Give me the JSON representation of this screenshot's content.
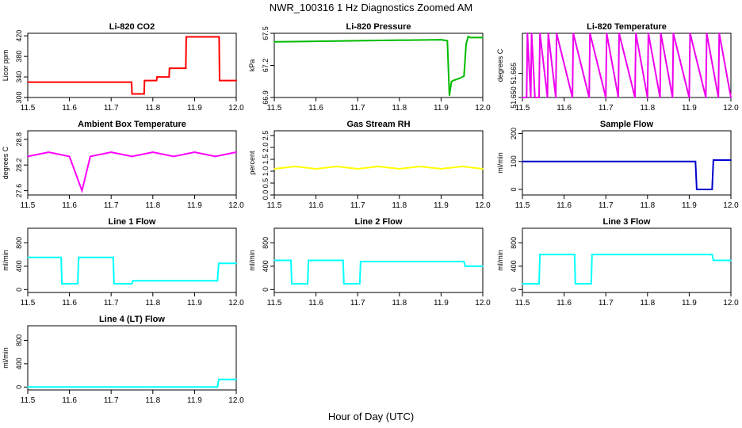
{
  "figure": {
    "title": "NWR_100316  1 Hz Diagnostics Zoomed AM",
    "xlabel": "Hour of Day (UTC)"
  },
  "chart_data": [
    {
      "type": "line",
      "title": "Li-820 CO2",
      "ylabel": "Licor ppm",
      "color": "#ff0000",
      "xlim": [
        11.5,
        12.0
      ],
      "ylim": [
        300,
        425
      ],
      "xticks": [
        "11.5",
        "11.6",
        "11.7",
        "11.8",
        "11.9",
        "12.0"
      ],
      "yticks": [
        "300",
        "340",
        "380",
        "420"
      ],
      "x": [
        11.5,
        11.749,
        11.75,
        11.779,
        11.78,
        11.809,
        11.81,
        11.839,
        11.84,
        11.879,
        11.88,
        11.959,
        11.96,
        12.0
      ],
      "y": [
        330,
        330,
        307,
        307,
        333,
        333,
        340,
        340,
        357,
        357,
        418,
        418,
        333,
        333
      ]
    },
    {
      "type": "line",
      "title": "Li-820 Pressure",
      "ylabel": "kPa",
      "color": "#00bb00",
      "xlim": [
        11.5,
        12.0
      ],
      "ylim": [
        66.9,
        67.5
      ],
      "xticks": [
        "11.5",
        "11.6",
        "11.7",
        "11.8",
        "11.9",
        "12.0"
      ],
      "yticks": [
        "66.9",
        "67.2",
        "67.5"
      ],
      "x": [
        11.5,
        11.7,
        11.9,
        11.915,
        11.92,
        11.925,
        11.93,
        11.945,
        11.955,
        11.96,
        11.965,
        11.97,
        12.0
      ],
      "y": [
        67.42,
        67.43,
        67.44,
        67.43,
        66.92,
        67.05,
        67.06,
        67.08,
        67.1,
        67.4,
        67.47,
        67.46,
        67.46
      ]
    },
    {
      "type": "line",
      "title": "Li-820 Temperature",
      "ylabel": "degrees C",
      "color": "#ee00ee",
      "xlim": [
        11.5,
        12.0
      ],
      "ylim": [
        51.65,
        51.69
      ],
      "xticks": [
        "11.5",
        "11.6",
        "11.7",
        "11.8",
        "11.9",
        "12.0"
      ],
      "yticks": [
        "51.650",
        "51.665"
      ],
      "x": [
        11.5,
        11.51,
        11.512,
        11.52,
        11.522,
        11.53,
        11.54,
        11.542,
        11.56,
        11.562,
        11.58,
        11.582,
        11.62,
        11.622,
        11.66,
        11.662,
        11.7,
        11.702,
        11.73,
        11.732,
        11.77,
        11.772,
        11.8,
        11.802,
        11.83,
        11.832,
        11.86,
        11.862,
        11.9,
        11.902,
        11.94,
        11.942,
        11.97,
        11.972,
        12.0
      ],
      "y": [
        51.65,
        51.65,
        51.69,
        51.65,
        51.69,
        51.65,
        51.65,
        51.69,
        51.65,
        51.69,
        51.65,
        51.69,
        51.65,
        51.69,
        51.65,
        51.69,
        51.65,
        51.69,
        51.65,
        51.69,
        51.65,
        51.69,
        51.65,
        51.69,
        51.65,
        51.69,
        51.65,
        51.69,
        51.65,
        51.69,
        51.65,
        51.69,
        51.65,
        51.69,
        51.65
      ]
    },
    {
      "type": "line",
      "title": "Ambient Box Temperature",
      "ylabel": "degrees C",
      "color": "#ff00ff",
      "xlim": [
        11.5,
        12.0
      ],
      "ylim": [
        27.5,
        29.0
      ],
      "xticks": [
        "11.5",
        "11.6",
        "11.7",
        "11.8",
        "11.9",
        "12.0"
      ],
      "yticks": [
        "27.6",
        "28.2",
        "28.8"
      ],
      "x": [
        11.5,
        11.55,
        11.6,
        11.63,
        11.65,
        11.7,
        11.75,
        11.8,
        11.85,
        11.9,
        11.95,
        12.0
      ],
      "y": [
        28.4,
        28.5,
        28.4,
        27.6,
        28.4,
        28.5,
        28.4,
        28.5,
        28.4,
        28.5,
        28.4,
        28.5
      ]
    },
    {
      "type": "line",
      "title": "Gas Stream RH",
      "ylabel": "percent",
      "color": "#ffff00",
      "xlim": [
        11.5,
        12.0
      ],
      "ylim": [
        0,
        2.7
      ],
      "xticks": [
        "11.5",
        "11.6",
        "11.7",
        "11.8",
        "11.9",
        "12.0"
      ],
      "yticks": [
        "0.0",
        "0.5",
        "1.0",
        "1.5",
        "2.0",
        "2.5"
      ],
      "x": [
        11.5,
        11.55,
        11.6,
        11.65,
        11.7,
        11.75,
        11.8,
        11.85,
        11.9,
        11.95,
        12.0
      ],
      "y": [
        1.1,
        1.2,
        1.1,
        1.2,
        1.1,
        1.2,
        1.1,
        1.2,
        1.1,
        1.2,
        1.1
      ]
    },
    {
      "type": "line",
      "title": "Sample Flow",
      "ylabel": "ml/min",
      "color": "#0000cc",
      "xlim": [
        11.5,
        12.0
      ],
      "ylim": [
        -20,
        210
      ],
      "xticks": [
        "11.5",
        "11.6",
        "11.7",
        "11.8",
        "11.9",
        "12.0"
      ],
      "yticks": [
        "0",
        "100",
        "200"
      ],
      "x": [
        11.5,
        11.915,
        11.918,
        11.955,
        11.958,
        12.0
      ],
      "y": [
        100,
        100,
        0,
        0,
        105,
        105
      ]
    },
    {
      "type": "line",
      "title": "Line 1 Flow",
      "ylabel": "ml/min",
      "color": "#00ffff",
      "xlim": [
        11.5,
        12.0
      ],
      "ylim": [
        -50,
        1050
      ],
      "xticks": [
        "11.5",
        "11.6",
        "11.7",
        "11.8",
        "11.9",
        "12.0"
      ],
      "yticks": [
        "0",
        "400",
        "800"
      ],
      "x": [
        11.5,
        11.58,
        11.582,
        11.62,
        11.622,
        11.705,
        11.707,
        11.75,
        11.752,
        11.955,
        11.958,
        12.0
      ],
      "y": [
        550,
        550,
        100,
        100,
        550,
        550,
        100,
        100,
        150,
        150,
        450,
        450
      ]
    },
    {
      "type": "line",
      "title": "Line 2 Flow",
      "ylabel": "ml/min",
      "color": "#00ffff",
      "xlim": [
        11.5,
        12.0
      ],
      "ylim": [
        -50,
        1050
      ],
      "xticks": [
        "11.5",
        "11.6",
        "11.7",
        "11.8",
        "11.9",
        "12.0"
      ],
      "yticks": [
        "0",
        "400",
        "800"
      ],
      "x": [
        11.5,
        11.54,
        11.542,
        11.58,
        11.582,
        11.665,
        11.667,
        11.705,
        11.707,
        11.955,
        11.958,
        12.0
      ],
      "y": [
        500,
        500,
        100,
        100,
        500,
        500,
        100,
        100,
        480,
        480,
        400,
        400
      ]
    },
    {
      "type": "line",
      "title": "Line 3 Flow",
      "ylabel": "ml/min",
      "color": "#00ffff",
      "xlim": [
        11.5,
        12.0
      ],
      "ylim": [
        -50,
        1050
      ],
      "xticks": [
        "11.5",
        "11.6",
        "11.7",
        "11.8",
        "11.9",
        "12.0"
      ],
      "yticks": [
        "0",
        "400",
        "800"
      ],
      "x": [
        11.5,
        11.54,
        11.542,
        11.625,
        11.627,
        11.665,
        11.667,
        11.955,
        11.958,
        12.0
      ],
      "y": [
        100,
        100,
        600,
        600,
        100,
        100,
        600,
        600,
        500,
        500
      ]
    },
    {
      "type": "line",
      "title": "Line 4 (LT) Flow",
      "ylabel": "ml/min",
      "color": "#00ffff",
      "xlim": [
        11.5,
        12.0
      ],
      "ylim": [
        -50,
        1050
      ],
      "xticks": [
        "11.5",
        "11.6",
        "11.7",
        "11.8",
        "11.9",
        "12.0"
      ],
      "yticks": [
        "0",
        "400",
        "800"
      ],
      "x": [
        11.5,
        11.955,
        11.958,
        12.0
      ],
      "y": [
        0,
        0,
        130,
        130
      ]
    }
  ]
}
